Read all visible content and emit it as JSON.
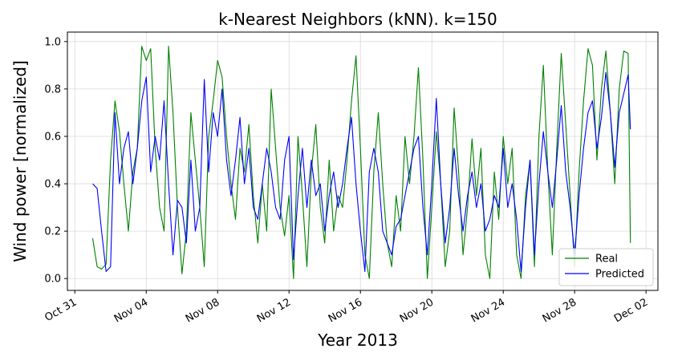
{
  "chart_data": {
    "type": "line",
    "title": "k-Nearest Neighbors (kNN). k=150",
    "xlabel": "Year 2013",
    "ylabel": "Wind power [normalized]",
    "xlim": [
      "2013-10-30T14:00",
      "2013-12-02T16:00"
    ],
    "ylim": [
      -0.05,
      1.04
    ],
    "x_ticks": [
      "Oct 31",
      "Nov 04",
      "Nov 08",
      "Nov 12",
      "Nov 16",
      "Nov 20",
      "Nov 24",
      "Nov 28",
      "Dec 02"
    ],
    "x_tick_dates": [
      "2013-10-31",
      "2013-11-04",
      "2013-11-08",
      "2013-11-12",
      "2013-11-16",
      "2013-11-20",
      "2013-11-24",
      "2013-11-28",
      "2013-12-02"
    ],
    "y_ticks": [
      "0.0",
      "0.2",
      "0.4",
      "0.6",
      "0.8",
      "1.0"
    ],
    "y_tick_values": [
      0.0,
      0.2,
      0.4,
      0.6,
      0.8,
      1.0
    ],
    "grid": true,
    "legend_position": "lower-right",
    "series": [
      {
        "name": "Real",
        "color": "#008000",
        "points": [
          [
            "2013-11-01T00:00",
            0.17
          ],
          [
            "2013-11-01T06:00",
            0.05
          ],
          [
            "2013-11-01T12:00",
            0.04
          ],
          [
            "2013-11-01T18:00",
            0.06
          ],
          [
            "2013-11-02T00:00",
            0.5
          ],
          [
            "2013-11-02T06:00",
            0.75
          ],
          [
            "2013-11-02T12:00",
            0.62
          ],
          [
            "2013-11-02T18:00",
            0.4
          ],
          [
            "2013-11-03T00:00",
            0.2
          ],
          [
            "2013-11-03T06:00",
            0.45
          ],
          [
            "2013-11-03T12:00",
            0.55
          ],
          [
            "2013-11-03T18:00",
            0.98
          ],
          [
            "2013-11-04T00:00",
            0.92
          ],
          [
            "2013-11-04T06:00",
            0.97
          ],
          [
            "2013-11-04T12:00",
            0.55
          ],
          [
            "2013-11-04T18:00",
            0.3
          ],
          [
            "2013-11-05T00:00",
            0.2
          ],
          [
            "2013-11-05T06:00",
            0.98
          ],
          [
            "2013-11-05T12:00",
            0.7
          ],
          [
            "2013-11-05T18:00",
            0.3
          ],
          [
            "2013-11-06T00:00",
            0.02
          ],
          [
            "2013-11-06T06:00",
            0.2
          ],
          [
            "2013-11-06T12:00",
            0.7
          ],
          [
            "2013-11-06T18:00",
            0.5
          ],
          [
            "2013-11-07T00:00",
            0.3
          ],
          [
            "2013-11-07T06:00",
            0.05
          ],
          [
            "2013-11-07T12:00",
            0.6
          ],
          [
            "2013-11-07T18:00",
            0.75
          ],
          [
            "2013-11-08T00:00",
            0.92
          ],
          [
            "2013-11-08T06:00",
            0.85
          ],
          [
            "2013-11-08T12:00",
            0.6
          ],
          [
            "2013-11-08T18:00",
            0.4
          ],
          [
            "2013-11-09T00:00",
            0.25
          ],
          [
            "2013-11-09T06:00",
            0.55
          ],
          [
            "2013-11-09T12:00",
            0.45
          ],
          [
            "2013-11-09T18:00",
            0.65
          ],
          [
            "2013-11-10T00:00",
            0.35
          ],
          [
            "2013-11-10T06:00",
            0.15
          ],
          [
            "2013-11-10T12:00",
            0.4
          ],
          [
            "2013-11-10T18:00",
            0.2
          ],
          [
            "2013-11-11T00:00",
            0.8
          ],
          [
            "2013-11-11T06:00",
            0.55
          ],
          [
            "2013-11-11T12:00",
            0.3
          ],
          [
            "2013-11-11T18:00",
            0.18
          ],
          [
            "2013-11-12T00:00",
            0.35
          ],
          [
            "2013-11-12T06:00",
            0.0
          ],
          [
            "2013-11-12T12:00",
            0.6
          ],
          [
            "2013-11-12T18:00",
            0.35
          ],
          [
            "2013-11-13T00:00",
            0.05
          ],
          [
            "2013-11-13T06:00",
            0.45
          ],
          [
            "2013-11-13T12:00",
            0.65
          ],
          [
            "2013-11-13T18:00",
            0.3
          ],
          [
            "2013-11-14T00:00",
            0.15
          ],
          [
            "2013-11-14T06:00",
            0.5
          ],
          [
            "2013-11-14T12:00",
            0.2
          ],
          [
            "2013-11-14T18:00",
            0.35
          ],
          [
            "2013-11-15T00:00",
            0.3
          ],
          [
            "2013-11-15T06:00",
            0.5
          ],
          [
            "2013-11-15T12:00",
            0.75
          ],
          [
            "2013-11-15T18:00",
            0.94
          ],
          [
            "2013-11-16T00:00",
            0.55
          ],
          [
            "2013-11-16T06:00",
            0.1
          ],
          [
            "2013-11-16T12:00",
            0.0
          ],
          [
            "2013-11-16T18:00",
            0.45
          ],
          [
            "2013-11-17T00:00",
            0.7
          ],
          [
            "2013-11-17T06:00",
            0.4
          ],
          [
            "2013-11-17T12:00",
            0.15
          ],
          [
            "2013-11-17T18:00",
            0.05
          ],
          [
            "2013-11-18T00:00",
            0.35
          ],
          [
            "2013-11-18T06:00",
            0.2
          ],
          [
            "2013-11-18T12:00",
            0.6
          ],
          [
            "2013-11-18T18:00",
            0.4
          ],
          [
            "2013-11-19T00:00",
            0.6
          ],
          [
            "2013-11-19T06:00",
            0.89
          ],
          [
            "2013-11-19T12:00",
            0.5
          ],
          [
            "2013-11-19T18:00",
            0.0
          ],
          [
            "2013-11-20T00:00",
            0.3
          ],
          [
            "2013-11-20T06:00",
            0.62
          ],
          [
            "2013-11-20T12:00",
            0.4
          ],
          [
            "2013-11-20T18:00",
            0.05
          ],
          [
            "2013-11-21T00:00",
            0.2
          ],
          [
            "2013-11-21T06:00",
            0.72
          ],
          [
            "2013-11-21T12:00",
            0.45
          ],
          [
            "2013-11-21T18:00",
            0.1
          ],
          [
            "2013-11-22T00:00",
            0.3
          ],
          [
            "2013-11-22T06:00",
            0.59
          ],
          [
            "2013-11-22T12:00",
            0.35
          ],
          [
            "2013-11-22T18:00",
            0.55
          ],
          [
            "2013-11-23T00:00",
            0.1
          ],
          [
            "2013-11-23T06:00",
            0.0
          ],
          [
            "2013-11-23T12:00",
            0.45
          ],
          [
            "2013-11-23T18:00",
            0.25
          ],
          [
            "2013-11-24T00:00",
            0.6
          ],
          [
            "2013-11-24T06:00",
            0.4
          ],
          [
            "2013-11-24T12:00",
            0.55
          ],
          [
            "2013-11-24T18:00",
            0.1
          ],
          [
            "2013-11-25T00:00",
            0.0
          ],
          [
            "2013-11-25T06:00",
            0.35
          ],
          [
            "2013-11-25T12:00",
            0.5
          ],
          [
            "2013-11-25T18:00",
            0.05
          ],
          [
            "2013-11-26T00:00",
            0.6
          ],
          [
            "2013-11-26T06:00",
            0.9
          ],
          [
            "2013-11-26T12:00",
            0.45
          ],
          [
            "2013-11-26T18:00",
            0.1
          ],
          [
            "2013-11-27T00:00",
            0.55
          ],
          [
            "2013-11-27T06:00",
            0.95
          ],
          [
            "2013-11-27T12:00",
            0.65
          ],
          [
            "2013-11-27T18:00",
            0.35
          ],
          [
            "2013-11-28T00:00",
            0.05
          ],
          [
            "2013-11-28T06:00",
            0.45
          ],
          [
            "2013-11-28T12:00",
            0.75
          ],
          [
            "2013-11-28T18:00",
            0.97
          ],
          [
            "2013-11-29T00:00",
            0.9
          ],
          [
            "2013-11-29T06:00",
            0.5
          ],
          [
            "2013-11-29T12:00",
            0.8
          ],
          [
            "2013-11-29T18:00",
            0.96
          ],
          [
            "2013-11-30T00:00",
            0.7
          ],
          [
            "2013-11-30T06:00",
            0.4
          ],
          [
            "2013-11-30T12:00",
            0.8
          ],
          [
            "2013-11-30T18:00",
            0.96
          ],
          [
            "2013-12-01T00:00",
            0.95
          ],
          [
            "2013-12-01T03:00",
            0.15
          ]
        ]
      },
      {
        "name": "Predicted",
        "color": "#0000ff",
        "points": [
          [
            "2013-11-01T00:00",
            0.4
          ],
          [
            "2013-11-01T06:00",
            0.38
          ],
          [
            "2013-11-01T12:00",
            0.2
          ],
          [
            "2013-11-01T18:00",
            0.03
          ],
          [
            "2013-11-02T00:00",
            0.05
          ],
          [
            "2013-11-02T06:00",
            0.7
          ],
          [
            "2013-11-02T12:00",
            0.4
          ],
          [
            "2013-11-02T18:00",
            0.55
          ],
          [
            "2013-11-03T00:00",
            0.62
          ],
          [
            "2013-11-03T06:00",
            0.4
          ],
          [
            "2013-11-03T12:00",
            0.55
          ],
          [
            "2013-11-03T18:00",
            0.75
          ],
          [
            "2013-11-04T00:00",
            0.85
          ],
          [
            "2013-11-04T06:00",
            0.45
          ],
          [
            "2013-11-04T12:00",
            0.6
          ],
          [
            "2013-11-04T18:00",
            0.5
          ],
          [
            "2013-11-05T00:00",
            0.75
          ],
          [
            "2013-11-05T06:00",
            0.4
          ],
          [
            "2013-11-05T12:00",
            0.1
          ],
          [
            "2013-11-05T18:00",
            0.33
          ],
          [
            "2013-11-06T00:00",
            0.3
          ],
          [
            "2013-11-06T06:00",
            0.15
          ],
          [
            "2013-11-06T12:00",
            0.5
          ],
          [
            "2013-11-06T18:00",
            0.2
          ],
          [
            "2013-11-07T00:00",
            0.3
          ],
          [
            "2013-11-07T06:00",
            0.84
          ],
          [
            "2013-11-07T12:00",
            0.45
          ],
          [
            "2013-11-07T18:00",
            0.7
          ],
          [
            "2013-11-08T00:00",
            0.6
          ],
          [
            "2013-11-08T06:00",
            0.8
          ],
          [
            "2013-11-08T12:00",
            0.5
          ],
          [
            "2013-11-08T18:00",
            0.35
          ],
          [
            "2013-11-09T00:00",
            0.5
          ],
          [
            "2013-11-09T06:00",
            0.68
          ],
          [
            "2013-11-09T12:00",
            0.4
          ],
          [
            "2013-11-09T18:00",
            0.55
          ],
          [
            "2013-11-10T00:00",
            0.3
          ],
          [
            "2013-11-10T06:00",
            0.25
          ],
          [
            "2013-11-10T12:00",
            0.4
          ],
          [
            "2013-11-10T18:00",
            0.55
          ],
          [
            "2013-11-11T00:00",
            0.45
          ],
          [
            "2013-11-11T06:00",
            0.3
          ],
          [
            "2013-11-11T12:00",
            0.25
          ],
          [
            "2013-11-11T18:00",
            0.5
          ],
          [
            "2013-11-12T00:00",
            0.6
          ],
          [
            "2013-11-12T06:00",
            0.08
          ],
          [
            "2013-11-12T12:00",
            0.35
          ],
          [
            "2013-11-12T18:00",
            0.55
          ],
          [
            "2013-11-13T00:00",
            0.3
          ],
          [
            "2013-11-13T06:00",
            0.5
          ],
          [
            "2013-11-13T12:00",
            0.35
          ],
          [
            "2013-11-13T18:00",
            0.4
          ],
          [
            "2013-11-14T00:00",
            0.2
          ],
          [
            "2013-11-14T06:00",
            0.35
          ],
          [
            "2013-11-14T12:00",
            0.45
          ],
          [
            "2013-11-14T18:00",
            0.3
          ],
          [
            "2013-11-15T00:00",
            0.4
          ],
          [
            "2013-11-15T06:00",
            0.55
          ],
          [
            "2013-11-15T12:00",
            0.68
          ],
          [
            "2013-11-15T18:00",
            0.4
          ],
          [
            "2013-11-16T00:00",
            0.2
          ],
          [
            "2013-11-16T06:00",
            0.03
          ],
          [
            "2013-11-16T12:00",
            0.45
          ],
          [
            "2013-11-16T18:00",
            0.55
          ],
          [
            "2013-11-17T00:00",
            0.45
          ],
          [
            "2013-11-17T06:00",
            0.2
          ],
          [
            "2013-11-17T12:00",
            0.15
          ],
          [
            "2013-11-17T18:00",
            0.1
          ],
          [
            "2013-11-18T00:00",
            0.22
          ],
          [
            "2013-11-18T06:00",
            0.25
          ],
          [
            "2013-11-18T12:00",
            0.35
          ],
          [
            "2013-11-18T18:00",
            0.45
          ],
          [
            "2013-11-19T00:00",
            0.55
          ],
          [
            "2013-11-19T06:00",
            0.6
          ],
          [
            "2013-11-19T12:00",
            0.3
          ],
          [
            "2013-11-19T18:00",
            0.1
          ],
          [
            "2013-11-20T00:00",
            0.4
          ],
          [
            "2013-11-20T06:00",
            0.76
          ],
          [
            "2013-11-20T12:00",
            0.4
          ],
          [
            "2013-11-20T18:00",
            0.15
          ],
          [
            "2013-11-21T00:00",
            0.3
          ],
          [
            "2013-11-21T06:00",
            0.55
          ],
          [
            "2013-11-21T12:00",
            0.35
          ],
          [
            "2013-11-21T18:00",
            0.2
          ],
          [
            "2013-11-22T00:00",
            0.35
          ],
          [
            "2013-11-22T06:00",
            0.45
          ],
          [
            "2013-11-22T12:00",
            0.3
          ],
          [
            "2013-11-22T18:00",
            0.4
          ],
          [
            "2013-11-23T00:00",
            0.2
          ],
          [
            "2013-11-23T06:00",
            0.25
          ],
          [
            "2013-11-23T12:00",
            0.35
          ],
          [
            "2013-11-23T18:00",
            0.3
          ],
          [
            "2013-11-24T00:00",
            0.55
          ],
          [
            "2013-11-24T06:00",
            0.3
          ],
          [
            "2013-11-24T12:00",
            0.4
          ],
          [
            "2013-11-24T18:00",
            0.25
          ],
          [
            "2013-11-25T00:00",
            0.03
          ],
          [
            "2013-11-25T06:00",
            0.3
          ],
          [
            "2013-11-25T12:00",
            0.5
          ],
          [
            "2013-11-25T18:00",
            0.1
          ],
          [
            "2013-11-26T00:00",
            0.4
          ],
          [
            "2013-11-26T06:00",
            0.62
          ],
          [
            "2013-11-26T12:00",
            0.45
          ],
          [
            "2013-11-26T18:00",
            0.3
          ],
          [
            "2013-11-27T00:00",
            0.5
          ],
          [
            "2013-11-27T06:00",
            0.73
          ],
          [
            "2013-11-27T12:00",
            0.45
          ],
          [
            "2013-11-27T18:00",
            0.3
          ],
          [
            "2013-11-28T00:00",
            0.1
          ],
          [
            "2013-11-28T06:00",
            0.35
          ],
          [
            "2013-11-28T12:00",
            0.55
          ],
          [
            "2013-11-28T18:00",
            0.7
          ],
          [
            "2013-11-29T00:00",
            0.75
          ],
          [
            "2013-11-29T06:00",
            0.55
          ],
          [
            "2013-11-29T12:00",
            0.68
          ],
          [
            "2013-11-29T18:00",
            0.87
          ],
          [
            "2013-11-30T00:00",
            0.7
          ],
          [
            "2013-11-30T06:00",
            0.47
          ],
          [
            "2013-11-30T12:00",
            0.7
          ],
          [
            "2013-11-30T18:00",
            0.78
          ],
          [
            "2013-12-01T00:00",
            0.86
          ],
          [
            "2013-12-01T03:00",
            0.63
          ]
        ]
      }
    ]
  }
}
